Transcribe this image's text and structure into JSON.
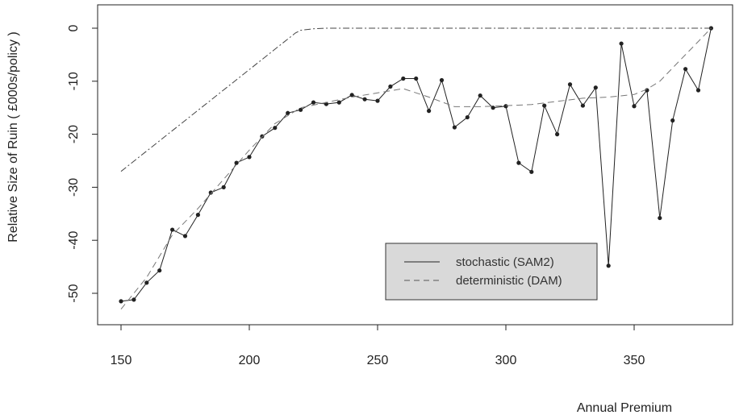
{
  "chart_data": {
    "type": "line",
    "title": "",
    "xlabel": "Annual Premium",
    "ylabel": "Relative Size of Ruin ( £000s/policy )",
    "xlim": [
      150,
      380
    ],
    "ylim": [
      -52,
      0
    ],
    "xticks": [
      150,
      200,
      250,
      300,
      350
    ],
    "xtick_labels": [
      "150",
      "200",
      "250",
      "300",
      "350"
    ],
    "yticks": [
      0,
      -10,
      -20,
      -30,
      -40,
      -50
    ],
    "ytick_labels": [
      "0",
      "-10",
      "-20",
      "-30",
      "-40",
      "-50"
    ],
    "grid": false,
    "legend_position": "bottom-right",
    "series": [
      {
        "name": "stochastic (SAM2)",
        "style": "solid-with-points",
        "color": "#222222",
        "x": [
          150,
          155,
          160,
          165,
          170,
          175,
          180,
          185,
          190,
          195,
          200,
          205,
          210,
          215,
          220,
          225,
          230,
          235,
          240,
          245,
          250,
          255,
          260,
          265,
          270,
          275,
          280,
          285,
          290,
          295,
          300,
          305,
          310,
          315,
          320,
          325,
          330,
          335,
          340,
          345,
          350,
          355,
          360,
          365,
          370,
          375,
          380
        ],
        "y": [
          -51.5,
          -51.2,
          -48.0,
          -45.7,
          -38.0,
          -39.2,
          -35.2,
          -31.0,
          -30.0,
          -25.4,
          -24.3,
          -20.4,
          -18.8,
          -16.0,
          -15.4,
          -14.0,
          -14.3,
          -14.0,
          -12.6,
          -13.4,
          -13.7,
          -11.0,
          -9.5,
          -9.5,
          -15.6,
          -9.8,
          -18.7,
          -16.8,
          -12.7,
          -15.0,
          -14.7,
          -25.4,
          -27.1,
          -14.6,
          -20.0,
          -10.6,
          -14.6,
          -11.2,
          -44.8,
          -2.9,
          -14.7,
          -11.7,
          -35.8,
          -17.4,
          -7.7,
          -11.7,
          0.0
        ]
      },
      {
        "name": "deterministic (DAM)",
        "style": "dashed",
        "color": "#777777",
        "x": [
          150,
          160,
          170,
          180,
          190,
          200,
          210,
          220,
          230,
          240,
          250,
          260,
          270,
          280,
          290,
          300,
          310,
          320,
          330,
          340,
          350,
          355,
          360,
          365,
          370,
          375,
          380
        ],
        "y": [
          -53.0,
          -47.0,
          -39.0,
          -34.0,
          -28.5,
          -23.0,
          -18.0,
          -15.0,
          -14.0,
          -13.0,
          -12.2,
          -11.4,
          -13.0,
          -14.8,
          -14.8,
          -14.6,
          -14.4,
          -13.8,
          -13.2,
          -13.0,
          -12.5,
          -11.5,
          -10.0,
          -7.5,
          -5.0,
          -2.5,
          0.0
        ]
      },
      {
        "name": "",
        "style": "dash-dot",
        "color": "#444444",
        "x": [
          150,
          218,
          220,
          225,
          230,
          380
        ],
        "y": [
          -27.0,
          -0.9,
          -0.4,
          -0.1,
          0.0,
          0.0
        ]
      }
    ]
  }
}
